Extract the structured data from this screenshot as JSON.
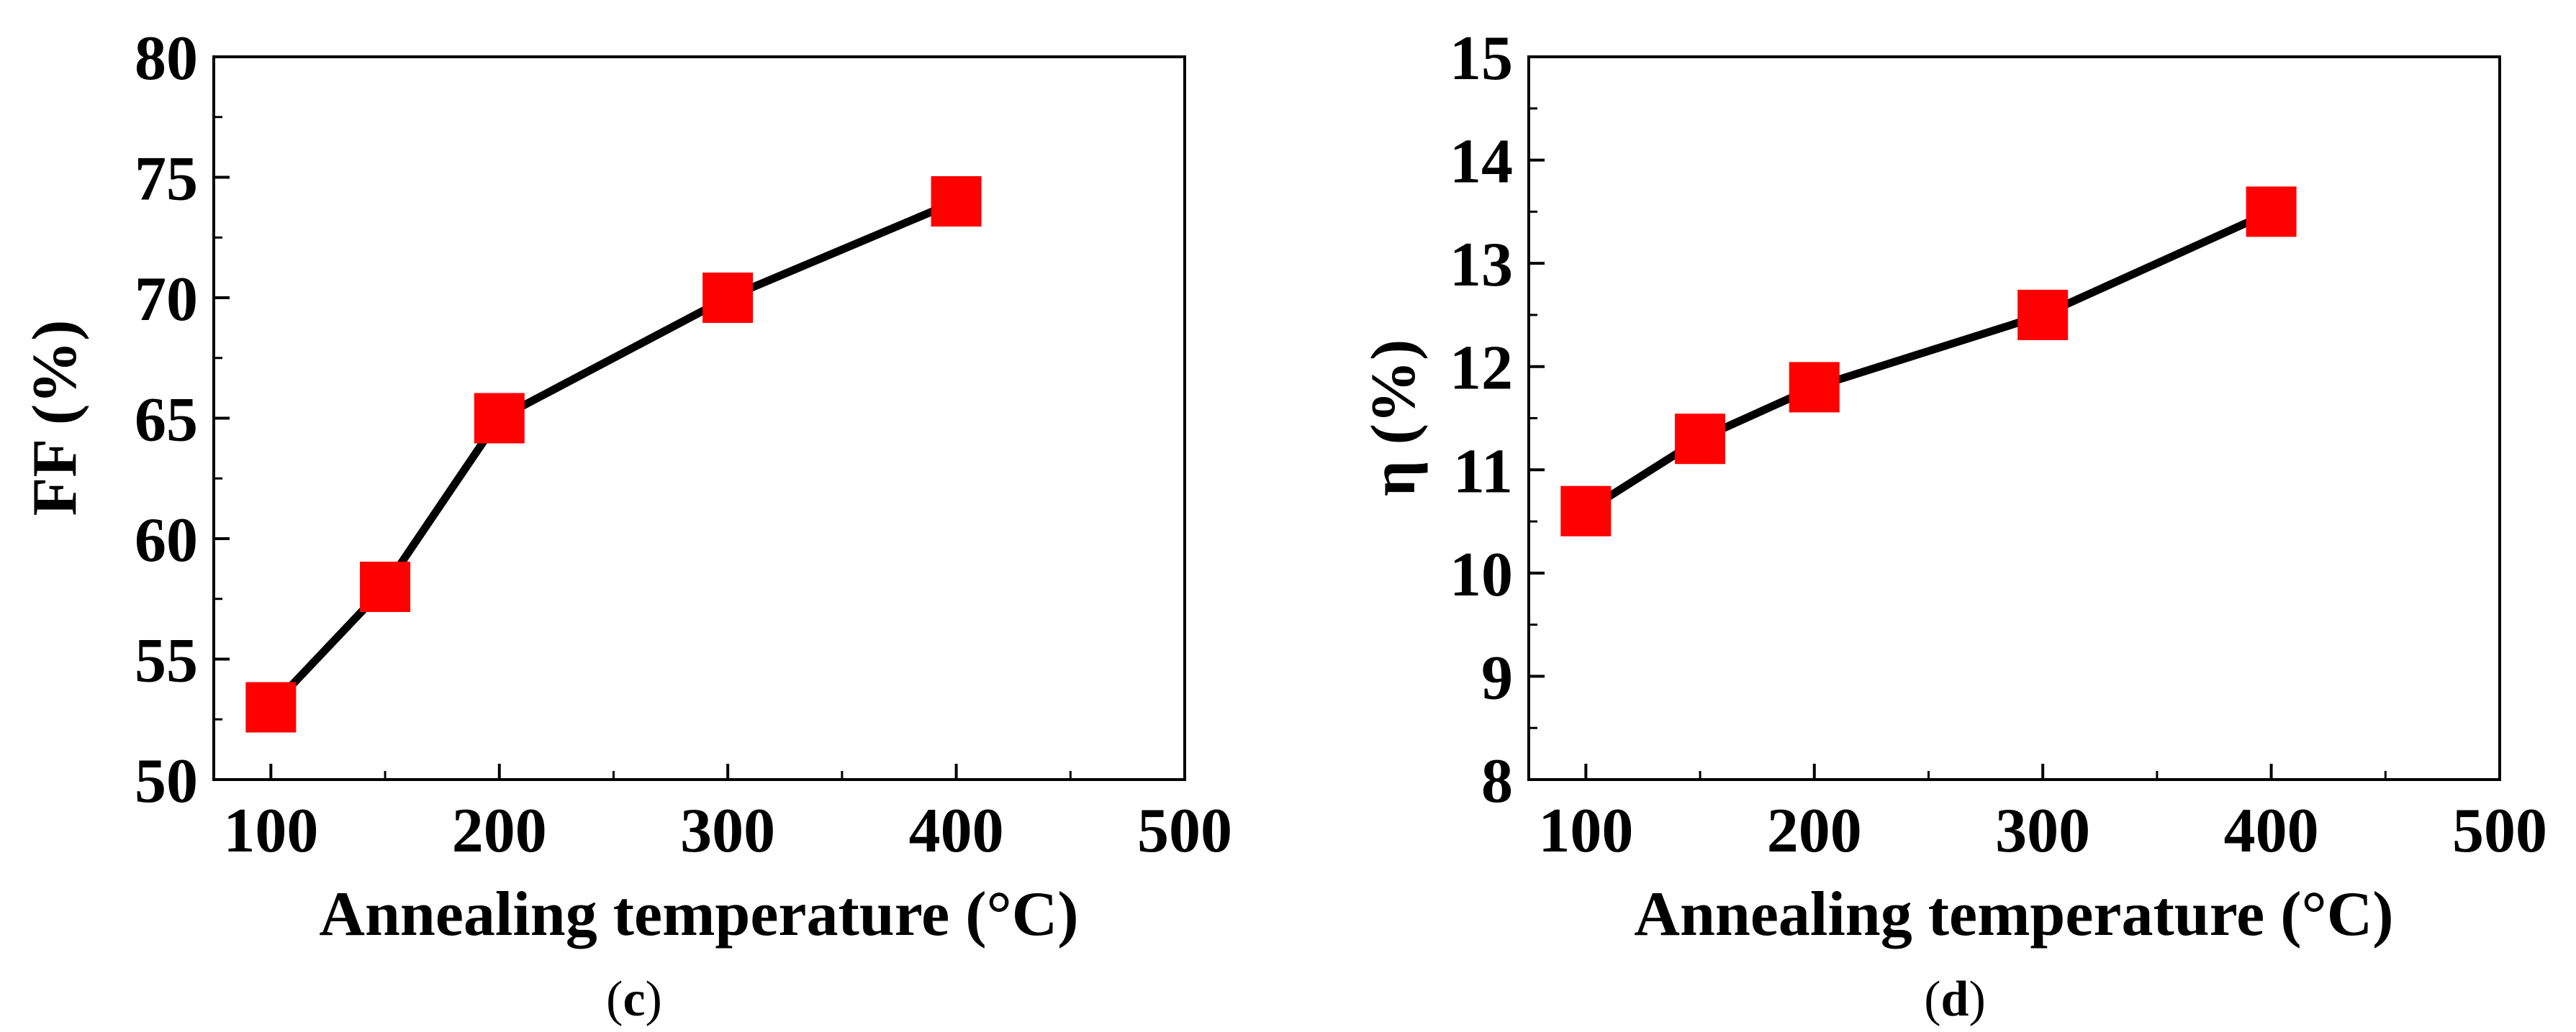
{
  "colors": {
    "marker": "#ff0000",
    "line": "#000000",
    "axis": "#000000",
    "background": "#ffffff"
  },
  "chart_data": [
    {
      "panel": "(c)",
      "panel_open": "(",
      "panel_letter": "c",
      "panel_close": ")",
      "type": "line",
      "title": "",
      "xlabel": "Annealing temperature (°C)",
      "ylabel": "FF (%)",
      "xlim": [
        75,
        500
      ],
      "ylim": [
        50,
        80
      ],
      "xticks": [
        100,
        200,
        300,
        400,
        500
      ],
      "yticks": [
        50,
        55,
        60,
        65,
        70,
        75,
        80
      ],
      "x_minor_step": 50,
      "y_minor_step": 2.5,
      "grid": false,
      "marker": "square",
      "series": [
        {
          "name": "FF",
          "x": [
            100,
            150,
            200,
            300,
            400
          ],
          "y": [
            53,
            58,
            65,
            70,
            74
          ]
        }
      ]
    },
    {
      "panel": "(d)",
      "panel_open": "(",
      "panel_letter": "d",
      "panel_close": ")",
      "type": "line",
      "title": "",
      "xlabel": "Annealing temperature (°C)",
      "ylabel": "η (%)",
      "xlim": [
        75,
        500
      ],
      "ylim": [
        8,
        15
      ],
      "xticks": [
        100,
        200,
        300,
        400,
        500
      ],
      "yticks": [
        8,
        9,
        10,
        11,
        12,
        13,
        14,
        15
      ],
      "x_minor_step": 50,
      "y_minor_step": 0.5,
      "grid": false,
      "marker": "square",
      "series": [
        {
          "name": "η",
          "x": [
            100,
            150,
            200,
            300,
            400
          ],
          "y": [
            10.6,
            11.3,
            11.8,
            12.5,
            13.5
          ]
        }
      ]
    }
  ]
}
